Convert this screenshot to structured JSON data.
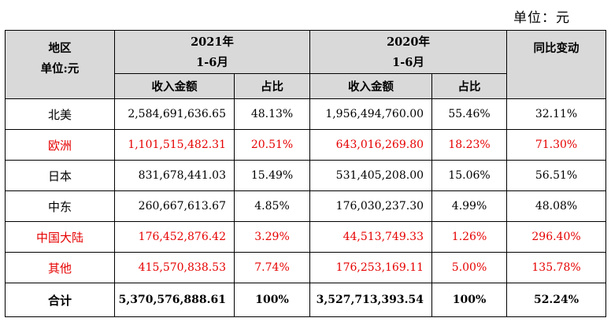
{
  "unit_note": "单位：元",
  "header": {
    "corner_line1": "地区",
    "corner_line2": "单位:元",
    "period_a_year": "2021年",
    "period_a_months": "1-6月",
    "period_b_year": "2020年",
    "period_b_months": "1-6月",
    "change": "同比变动",
    "revenue": "收入金额",
    "share": "占比"
  },
  "rows": [
    {
      "region": "北美",
      "rev2021": "2,584,691,636.65",
      "pct2021": "48.13%",
      "rev2020": "1,956,494,760.00",
      "pct2020": "55.46%",
      "yoy": "32.11%",
      "highlight": false
    },
    {
      "region": "欧洲",
      "rev2021": "1,101,515,482.31",
      "pct2021": "20.51%",
      "rev2020": "643,016,269.80",
      "pct2020": "18.23%",
      "yoy": "71.30%",
      "highlight": true
    },
    {
      "region": "日本",
      "rev2021": "831,678,441.03",
      "pct2021": "15.49%",
      "rev2020": "531,405,208.00",
      "pct2020": "15.06%",
      "yoy": "56.51%",
      "highlight": false
    },
    {
      "region": "中东",
      "rev2021": "260,667,613.67",
      "pct2021": "4.85%",
      "rev2020": "176,030,237.30",
      "pct2020": "4.99%",
      "yoy": "48.08%",
      "highlight": false
    },
    {
      "region": "中国大陆",
      "rev2021": "176,452,876.42",
      "pct2021": "3.29%",
      "rev2020": "44,513,749.33",
      "pct2020": "1.26%",
      "yoy": "296.40%",
      "highlight": true
    },
    {
      "region": "其他",
      "rev2021": "415,570,838.53",
      "pct2021": "7.74%",
      "rev2020": "176,253,169.11",
      "pct2020": "5.00%",
      "yoy": "135.78%",
      "highlight": true
    }
  ],
  "total": {
    "region": "合计",
    "rev2021": "5,370,576,888.61",
    "pct2021": "100%",
    "rev2020": "3,527,713,393.54",
    "pct2020": "100%",
    "yoy": "52.24%"
  },
  "colors": {
    "highlight_text": "#e60000",
    "header_bg": "#d9d9d9"
  }
}
